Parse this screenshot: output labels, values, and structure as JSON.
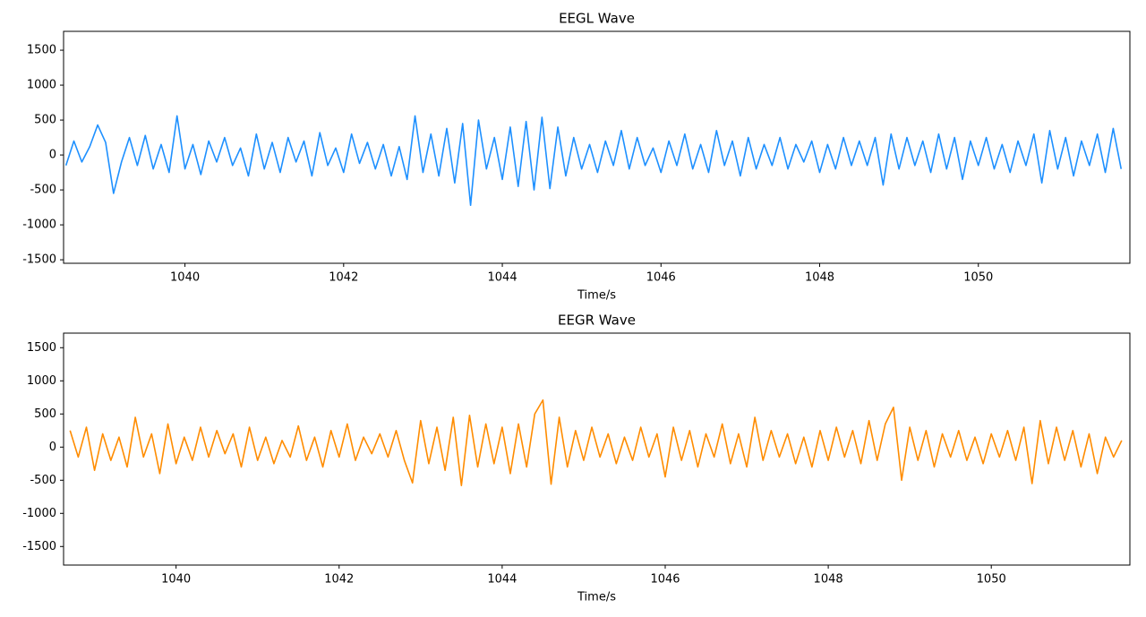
{
  "chart_data": [
    {
      "type": "line",
      "title": "EEGL Wave",
      "x_label": "Time/s",
      "x": [
        1038.5,
        1038.6,
        1038.7,
        1038.8,
        1038.9,
        1039.0,
        1039.1,
        1039.2,
        1039.3,
        1039.4,
        1039.5,
        1039.6,
        1039.7,
        1039.8,
        1039.9,
        1040.0,
        1040.1,
        1040.2,
        1040.3,
        1040.4,
        1040.5,
        1040.6,
        1040.7,
        1040.8,
        1040.9,
        1041.0,
        1041.1,
        1041.2,
        1041.3,
        1041.4,
        1041.5,
        1041.6,
        1041.7,
        1041.8,
        1041.9,
        1042.0,
        1042.1,
        1042.2,
        1042.3,
        1042.4,
        1042.5,
        1042.6,
        1042.7,
        1042.8,
        1042.9,
        1043.0,
        1043.1,
        1043.2,
        1043.3,
        1043.4,
        1043.5,
        1043.6,
        1043.7,
        1043.8,
        1043.9,
        1044.0,
        1044.1,
        1044.2,
        1044.3,
        1044.4,
        1044.5,
        1044.6,
        1044.7,
        1044.8,
        1044.9,
        1045.0,
        1045.1,
        1045.2,
        1045.3,
        1045.4,
        1045.5,
        1045.6,
        1045.7,
        1045.8,
        1045.9,
        1046.0,
        1046.1,
        1046.2,
        1046.3,
        1046.4,
        1046.5,
        1046.6,
        1046.7,
        1046.8,
        1046.9,
        1047.0,
        1047.1,
        1047.2,
        1047.3,
        1047.4,
        1047.5,
        1047.6,
        1047.7,
        1047.8,
        1047.9,
        1048.0,
        1048.1,
        1048.2,
        1048.3,
        1048.4,
        1048.5,
        1048.6,
        1048.7,
        1048.8,
        1048.9,
        1049.0,
        1049.1,
        1049.2,
        1049.3,
        1049.4,
        1049.5,
        1049.6,
        1049.7,
        1049.8,
        1049.9,
        1050.0,
        1050.1,
        1050.2,
        1050.3,
        1050.4,
        1050.5,
        1050.6,
        1050.7,
        1050.8,
        1050.9,
        1051.0,
        1051.1,
        1051.2,
        1051.3,
        1051.4,
        1051.5,
        1051.6,
        1051.7,
        1051.8
      ],
      "series": [
        {
          "name": "EEGL",
          "color": "#1e90ff",
          "values": [
            -150,
            200,
            -100,
            120,
            430,
            180,
            -550,
            -100,
            250,
            -150,
            280,
            -200,
            150,
            -250,
            560,
            -200,
            150,
            -280,
            200,
            -100,
            250,
            -150,
            100,
            -300,
            300,
            -200,
            180,
            -250,
            250,
            -100,
            200,
            -300,
            320,
            -150,
            100,
            -250,
            300,
            -120,
            180,
            -200,
            150,
            -300,
            120,
            -350,
            560,
            -250,
            300,
            -300,
            380,
            -400,
            450,
            -720,
            500,
            -200,
            250,
            -350,
            400,
            -450,
            480,
            -500,
            540,
            -480,
            400,
            -300,
            250,
            -200,
            150,
            -250,
            200,
            -150,
            350,
            -200,
            250,
            -150,
            100,
            -250,
            200,
            -150,
            300,
            -200,
            150,
            -250,
            350,
            -150,
            200,
            -300,
            250,
            -200,
            150,
            -150,
            250,
            -200,
            150,
            -100,
            200,
            -250,
            150,
            -200,
            250,
            -150,
            200,
            -150,
            250,
            -430,
            300,
            -200,
            250,
            -150,
            200,
            -250,
            300,
            -200,
            250,
            -350,
            200,
            -150,
            250,
            -200,
            150,
            -250,
            200,
            -150,
            300,
            -400,
            350,
            -200,
            250,
            -300,
            200,
            -150,
            300,
            -250,
            380,
            -200
          ]
        }
      ],
      "xlim": [
        1038.47,
        1051.91
      ],
      "ylim": [
        -1550,
        1770
      ],
      "xticks": [
        1040,
        1042,
        1044,
        1046,
        1048,
        1050
      ],
      "yticks": [
        -1500,
        -1000,
        -500,
        0,
        500,
        1000,
        1500
      ]
    },
    {
      "type": "line",
      "title": "EEGR Wave",
      "x_label": "Time/s",
      "x": [
        1038.7,
        1038.8,
        1038.9,
        1039.0,
        1039.1,
        1039.2,
        1039.3,
        1039.4,
        1039.5,
        1039.6,
        1039.7,
        1039.8,
        1039.9,
        1040.0,
        1040.1,
        1040.2,
        1040.3,
        1040.4,
        1040.5,
        1040.6,
        1040.7,
        1040.8,
        1040.9,
        1041.0,
        1041.1,
        1041.2,
        1041.3,
        1041.4,
        1041.5,
        1041.6,
        1041.7,
        1041.8,
        1041.9,
        1042.0,
        1042.1,
        1042.2,
        1042.3,
        1042.4,
        1042.5,
        1042.6,
        1042.7,
        1042.8,
        1042.9,
        1043.0,
        1043.1,
        1043.2,
        1043.3,
        1043.4,
        1043.5,
        1043.6,
        1043.7,
        1043.8,
        1043.9,
        1044.0,
        1044.1,
        1044.2,
        1044.3,
        1044.4,
        1044.5,
        1044.6,
        1044.7,
        1044.8,
        1044.9,
        1045.0,
        1045.1,
        1045.2,
        1045.3,
        1045.4,
        1045.5,
        1045.6,
        1045.7,
        1045.8,
        1045.9,
        1046.0,
        1046.1,
        1046.2,
        1046.3,
        1046.4,
        1046.5,
        1046.6,
        1046.7,
        1046.8,
        1046.9,
        1047.0,
        1047.1,
        1047.2,
        1047.3,
        1047.4,
        1047.5,
        1047.6,
        1047.7,
        1047.8,
        1047.9,
        1048.0,
        1048.1,
        1048.2,
        1048.3,
        1048.4,
        1048.5,
        1048.6,
        1048.7,
        1048.8,
        1048.9,
        1049.0,
        1049.1,
        1049.2,
        1049.3,
        1049.4,
        1049.5,
        1049.6,
        1049.7,
        1049.8,
        1049.9,
        1050.0,
        1050.1,
        1050.2,
        1050.3,
        1050.4,
        1050.5,
        1050.6,
        1050.7,
        1050.8,
        1050.9,
        1051.0,
        1051.1,
        1051.2,
        1051.3,
        1051.4,
        1051.5,
        1051.6
      ],
      "series": [
        {
          "name": "EEGR",
          "color": "#ff8c00",
          "values": [
            250,
            -150,
            300,
            -350,
            200,
            -200,
            150,
            -300,
            450,
            -150,
            200,
            -400,
            350,
            -250,
            150,
            -200,
            300,
            -150,
            250,
            -100,
            200,
            -300,
            300,
            -200,
            150,
            -250,
            100,
            -150,
            320,
            -200,
            150,
            -300,
            250,
            -150,
            350,
            -200,
            150,
            -100,
            200,
            -150,
            250,
            -200,
            -540,
            400,
            -250,
            300,
            -350,
            450,
            -580,
            480,
            -300,
            350,
            -250,
            300,
            -400,
            350,
            -300,
            500,
            710,
            -560,
            450,
            -300,
            250,
            -200,
            300,
            -150,
            200,
            -250,
            150,
            -200,
            300,
            -150,
            200,
            -450,
            300,
            -200,
            250,
            -300,
            200,
            -150,
            350,
            -250,
            200,
            -300,
            450,
            -200,
            250,
            -150,
            200,
            -250,
            150,
            -300,
            250,
            -200,
            300,
            -150,
            250,
            -250,
            400,
            -200,
            350,
            600,
            -500,
            300,
            -200,
            250,
            -300,
            200,
            -150,
            250,
            -200,
            150,
            -250,
            200,
            -150,
            250,
            -200,
            300,
            -550,
            400,
            -250,
            300,
            -200,
            250,
            -300,
            200,
            -400,
            150,
            -150,
            100
          ]
        }
      ],
      "xlim": [
        1038.62,
        1051.7
      ],
      "ylim": [
        -1780,
        1720
      ],
      "xticks": [
        1040,
        1042,
        1044,
        1046,
        1048,
        1050
      ],
      "yticks": [
        -1500,
        -1000,
        -500,
        0,
        500,
        1000,
        1500
      ]
    }
  ]
}
